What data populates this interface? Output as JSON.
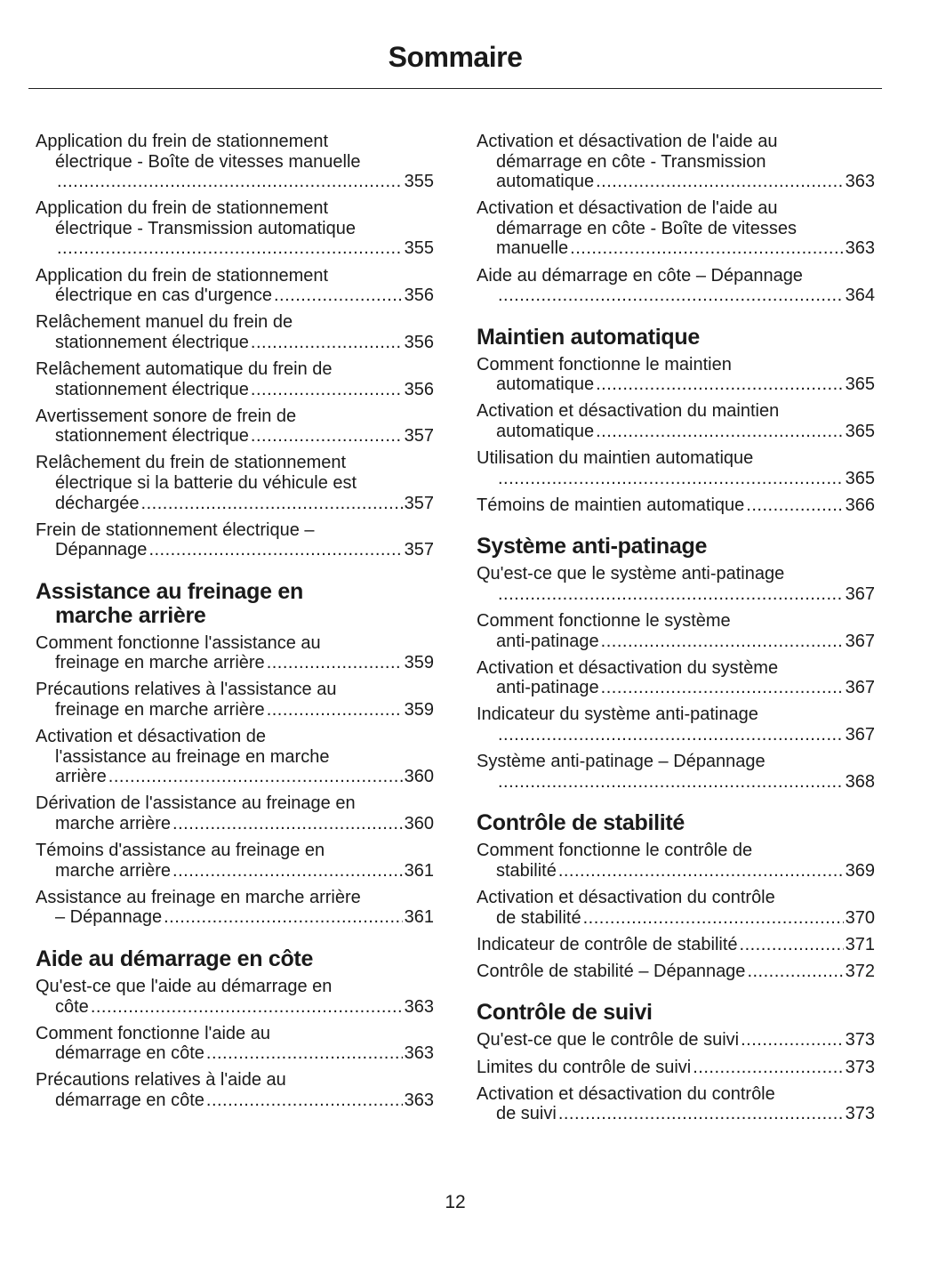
{
  "title": "Sommaire",
  "page_number": "12",
  "columns": [
    [
      {
        "type": "entry",
        "lines": [
          "Application du frein de stationnement",
          "électrique - Boîte de vitesses manuelle",
          ""
        ],
        "page": "355"
      },
      {
        "type": "entry",
        "lines": [
          "Application du frein de stationnement",
          "électrique - Transmission automatique",
          ""
        ],
        "page": "355"
      },
      {
        "type": "entry",
        "lines": [
          "Application du frein de stationnement",
          "électrique en cas d'urgence"
        ],
        "page": "356"
      },
      {
        "type": "entry",
        "lines": [
          "Relâchement manuel du frein de",
          "stationnement électrique"
        ],
        "page": "356"
      },
      {
        "type": "entry",
        "lines": [
          "Relâchement automatique du frein de",
          "stationnement électrique"
        ],
        "page": "356"
      },
      {
        "type": "entry",
        "lines": [
          "Avertissement sonore de frein de",
          "stationnement électrique"
        ],
        "page": "357"
      },
      {
        "type": "entry",
        "lines": [
          "Relâchement du frein de stationnement",
          "électrique si la batterie du véhicule est",
          "déchargée"
        ],
        "page": "357"
      },
      {
        "type": "entry",
        "lines": [
          "Frein de stationnement électrique –",
          "Dépannage"
        ],
        "page": "357"
      },
      {
        "type": "heading",
        "lines": [
          "Assistance au freinage en",
          "marche arrière"
        ]
      },
      {
        "type": "entry",
        "lines": [
          "Comment fonctionne l'assistance au",
          "freinage en marche arrière"
        ],
        "page": "359"
      },
      {
        "type": "entry",
        "lines": [
          "Précautions relatives à l'assistance au",
          "freinage en marche arrière"
        ],
        "page": "359"
      },
      {
        "type": "entry",
        "lines": [
          "Activation et désactivation de",
          "l'assistance au freinage en marche",
          "arrière"
        ],
        "page": "360"
      },
      {
        "type": "entry",
        "lines": [
          "Dérivation de l'assistance au freinage en",
          "marche arrière"
        ],
        "page": "360"
      },
      {
        "type": "entry",
        "lines": [
          "Témoins d'assistance au freinage en",
          "marche arrière"
        ],
        "page": "361"
      },
      {
        "type": "entry",
        "lines": [
          "Assistance au freinage en marche arrière",
          "– Dépannage"
        ],
        "page": "361"
      },
      {
        "type": "heading",
        "lines": [
          "Aide au démarrage en côte"
        ]
      },
      {
        "type": "entry",
        "lines": [
          "Qu'est-ce que l'aide au démarrage en",
          "côte"
        ],
        "page": "363"
      },
      {
        "type": "entry",
        "lines": [
          "Comment fonctionne l'aide au",
          "démarrage en côte"
        ],
        "page": "363"
      },
      {
        "type": "entry",
        "lines": [
          "Précautions relatives à l'aide au",
          "démarrage en côte"
        ],
        "page": "363"
      }
    ],
    [
      {
        "type": "entry",
        "lines": [
          "Activation et désactivation de l'aide au",
          "démarrage en côte - Transmission",
          "automatique"
        ],
        "page": "363"
      },
      {
        "type": "entry",
        "lines": [
          "Activation et désactivation de l'aide au",
          "démarrage en côte - Boîte de vitesses",
          "manuelle"
        ],
        "page": "363"
      },
      {
        "type": "entry",
        "lines": [
          "Aide au démarrage en côte – Dépannage",
          ""
        ],
        "page": "364"
      },
      {
        "type": "heading",
        "lines": [
          "Maintien automatique"
        ]
      },
      {
        "type": "entry",
        "lines": [
          "Comment fonctionne le maintien",
          "automatique"
        ],
        "page": "365"
      },
      {
        "type": "entry",
        "lines": [
          "Activation et désactivation du maintien",
          "automatique"
        ],
        "page": "365"
      },
      {
        "type": "entry",
        "lines": [
          "Utilisation du maintien automatique",
          ""
        ],
        "page": "365"
      },
      {
        "type": "entry",
        "lines": [
          "Témoins de maintien automatique"
        ],
        "page": "366"
      },
      {
        "type": "heading",
        "lines": [
          "Système anti-patinage"
        ]
      },
      {
        "type": "entry",
        "lines": [
          "Qu'est-ce que le système anti-patinage",
          ""
        ],
        "page": "367"
      },
      {
        "type": "entry",
        "lines": [
          "Comment fonctionne le système",
          "anti-patinage"
        ],
        "page": "367"
      },
      {
        "type": "entry",
        "lines": [
          "Activation et désactivation du système",
          "anti-patinage"
        ],
        "page": "367"
      },
      {
        "type": "entry",
        "lines": [
          "Indicateur du système anti-patinage",
          ""
        ],
        "page": "367"
      },
      {
        "type": "entry",
        "lines": [
          "Système anti-patinage – Dépannage",
          ""
        ],
        "page": "368"
      },
      {
        "type": "heading",
        "lines": [
          "Contrôle de stabilité"
        ]
      },
      {
        "type": "entry",
        "lines": [
          "Comment fonctionne le contrôle de",
          "stabilité"
        ],
        "page": "369"
      },
      {
        "type": "entry",
        "lines": [
          "Activation et désactivation du contrôle",
          "de stabilité"
        ],
        "page": "370"
      },
      {
        "type": "entry",
        "lines": [
          "Indicateur de contrôle de stabilité"
        ],
        "page": "371"
      },
      {
        "type": "entry",
        "lines": [
          "Contrôle de stabilité – Dépannage"
        ],
        "page": "372"
      },
      {
        "type": "heading",
        "lines": [
          "Contrôle de suivi"
        ]
      },
      {
        "type": "entry",
        "lines": [
          "Qu'est-ce que le contrôle de suivi"
        ],
        "page": "373"
      },
      {
        "type": "entry",
        "lines": [
          "Limites du contrôle de suivi"
        ],
        "page": "373"
      },
      {
        "type": "entry",
        "lines": [
          "Activation et désactivation du contrôle",
          "de suivi"
        ],
        "page": "373"
      }
    ]
  ]
}
